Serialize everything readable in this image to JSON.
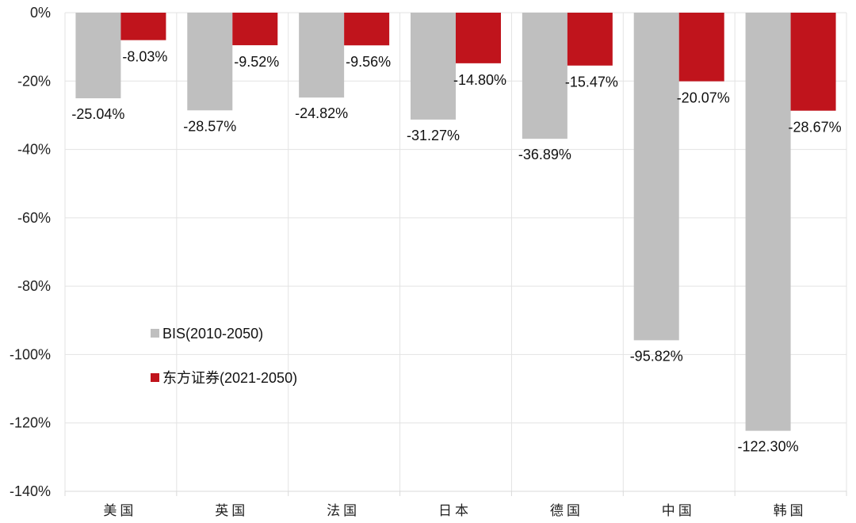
{
  "chart_data": {
    "type": "bar",
    "title": "",
    "xlabel": "",
    "ylabel": "",
    "categories": [
      "美国",
      "英国",
      "法国",
      "日本",
      "德国",
      "中国",
      "韩国"
    ],
    "series": [
      {
        "name": "BIS(2010-2050)",
        "color": "#bfbfbf",
        "values": [
          -25.04,
          -28.57,
          -24.82,
          -31.27,
          -36.89,
          -95.82,
          -122.3
        ],
        "labels": [
          "-25.04%",
          "-28.57%",
          "-24.82%",
          "-31.27%",
          "-36.89%",
          "-95.82%",
          "-122.30%"
        ]
      },
      {
        "name": "东方证券(2021-2050)",
        "color": "#c0141c",
        "values": [
          -8.03,
          -9.52,
          -9.56,
          -14.8,
          -15.47,
          -20.07,
          -28.67
        ],
        "labels": [
          "-8.03%",
          "-9.52%",
          "-9.56%",
          "-14.80%",
          "-15.47%",
          "-20.07%",
          "-28.67%"
        ]
      }
    ],
    "ylim": [
      -140,
      0
    ],
    "yticks": [
      0,
      -20,
      -40,
      -60,
      -80,
      -100,
      -120,
      -140
    ],
    "ytick_labels": [
      "0%",
      "-20%",
      "-40%",
      "-60%",
      "-80%",
      "-100%",
      "-120%",
      "-140%"
    ],
    "grid": true,
    "legend_position": "lower-left inside plot"
  }
}
